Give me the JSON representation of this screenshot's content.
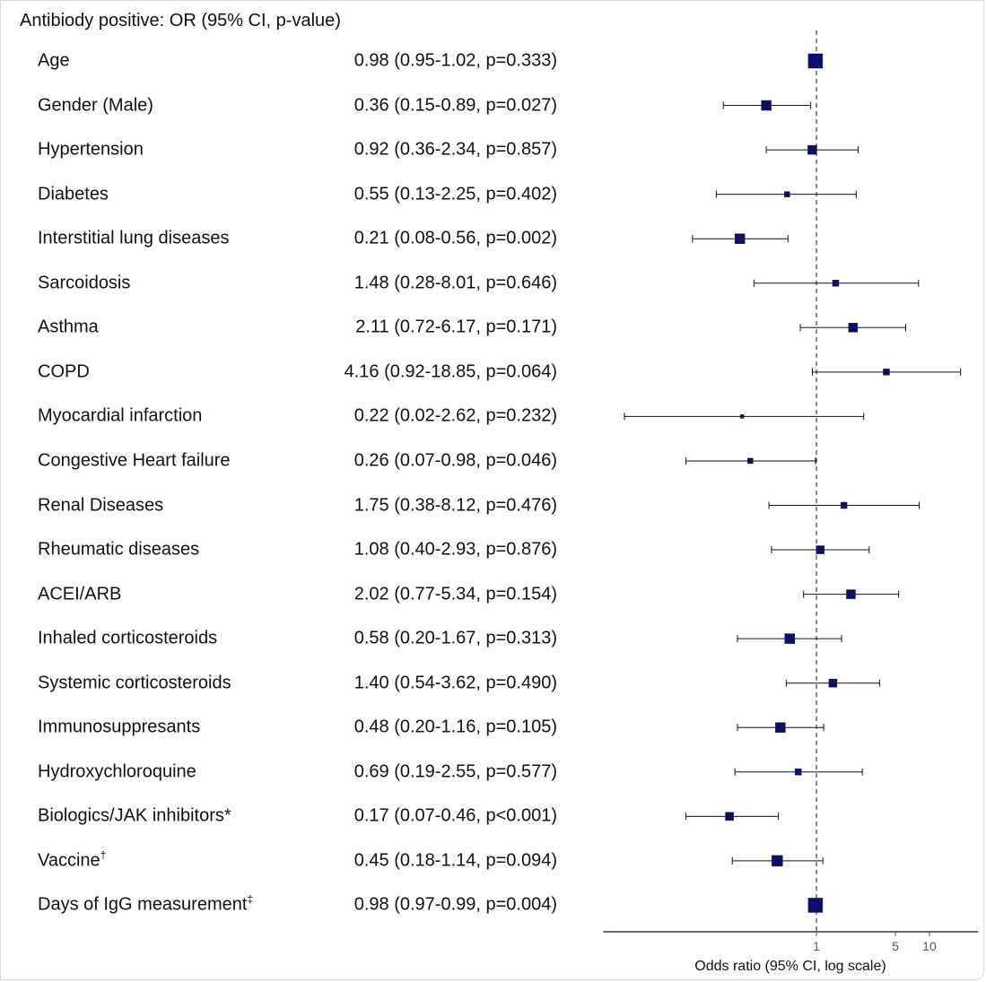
{
  "chart_data": {
    "type": "forest",
    "title": "Antibiody positive: OR (95% CI, p-value)",
    "xlabel": "Odds ratio (95% CI, log scale)",
    "x_scale": "log",
    "xlim": [
      0.013,
      27
    ],
    "xticks": [
      "1",
      "5",
      "10"
    ],
    "reference_line": 1,
    "marker_color": "#0d0d6b",
    "rows": [
      {
        "label": "Age",
        "sup": "",
        "or": 0.98,
        "lo": 0.95,
        "hi": 1.02,
        "text": "0.98 (0.95-1.02, p=0.333)",
        "weight": 16
      },
      {
        "label": "Gender (Male)",
        "sup": "",
        "or": 0.36,
        "lo": 0.15,
        "hi": 0.89,
        "text": "0.36 (0.15-0.89, p=0.027)",
        "weight": 11
      },
      {
        "label": "Hypertension",
        "sup": "",
        "or": 0.92,
        "lo": 0.36,
        "hi": 2.34,
        "text": "0.92 (0.36-2.34, p=0.857)",
        "weight": 10
      },
      {
        "label": "Diabetes",
        "sup": "",
        "or": 0.55,
        "lo": 0.13,
        "hi": 2.25,
        "text": "0.55 (0.13-2.25, p=0.402)",
        "weight": 6
      },
      {
        "label": "Interstitial lung diseases",
        "sup": "",
        "or": 0.21,
        "lo": 0.08,
        "hi": 0.56,
        "text": "0.21 (0.08-0.56, p=0.002)",
        "weight": 11
      },
      {
        "label": "Sarcoidosis",
        "sup": "",
        "or": 1.48,
        "lo": 0.28,
        "hi": 8.01,
        "text": "1.48 (0.28-8.01, p=0.646)",
        "weight": 7
      },
      {
        "label": "Asthma",
        "sup": "",
        "or": 2.11,
        "lo": 0.72,
        "hi": 6.17,
        "text": "2.11 (0.72-6.17, p=0.171)",
        "weight": 10
      },
      {
        "label": "COPD",
        "sup": "",
        "or": 4.16,
        "lo": 0.92,
        "hi": 18.85,
        "text": "4.16 (0.92-18.85, p=0.064)",
        "weight": 7
      },
      {
        "label": "Myocardial infarction",
        "sup": "",
        "or": 0.22,
        "lo": 0.02,
        "hi": 2.62,
        "text": "0.22 (0.02-2.62, p=0.232)",
        "weight": 4
      },
      {
        "label": "Congestive Heart failure",
        "sup": "",
        "or": 0.26,
        "lo": 0.07,
        "hi": 0.98,
        "text": "0.26 (0.07-0.98, p=0.046)",
        "weight": 6
      },
      {
        "label": "Renal Diseases",
        "sup": "",
        "or": 1.75,
        "lo": 0.38,
        "hi": 8.12,
        "text": "1.75 (0.38-8.12, p=0.476)",
        "weight": 7
      },
      {
        "label": "Rheumatic diseases",
        "sup": "",
        "or": 1.08,
        "lo": 0.4,
        "hi": 2.93,
        "text": "1.08 (0.40-2.93, p=0.876)",
        "weight": 9
      },
      {
        "label": "ACEI/ARB",
        "sup": "",
        "or": 2.02,
        "lo": 0.77,
        "hi": 5.34,
        "text": "2.02 (0.77-5.34, p=0.154)",
        "weight": 10
      },
      {
        "label": "Inhaled corticosteroids",
        "sup": "",
        "or": 0.58,
        "lo": 0.2,
        "hi": 1.67,
        "text": "0.58 (0.20-1.67, p=0.313)",
        "weight": 11
      },
      {
        "label": "Systemic corticosteroids",
        "sup": "",
        "or": 1.4,
        "lo": 0.54,
        "hi": 3.62,
        "text": "1.40 (0.54-3.62, p=0.490)",
        "weight": 9
      },
      {
        "label": "Immunosuppresants",
        "sup": "",
        "or": 0.48,
        "lo": 0.2,
        "hi": 1.16,
        "text": "0.48 (0.20-1.16, p=0.105)",
        "weight": 11
      },
      {
        "label": "Hydroxychloroquine",
        "sup": "",
        "or": 0.69,
        "lo": 0.19,
        "hi": 2.55,
        "text": "0.69 (0.19-2.55, p=0.577)",
        "weight": 7
      },
      {
        "label": "Biologics/JAK inhibitors*",
        "sup": "",
        "or": 0.17,
        "lo": 0.07,
        "hi": 0.46,
        "text": "0.17 (0.07-0.46, p<0.001)",
        "weight": 9
      },
      {
        "label": "Vaccine",
        "sup": "†",
        "or": 0.45,
        "lo": 0.18,
        "hi": 1.14,
        "text": "0.45 (0.18-1.14, p=0.094)",
        "weight": 12
      },
      {
        "label": "Days of IgG measurement",
        "sup": "‡",
        "or": 0.98,
        "lo": 0.97,
        "hi": 0.99,
        "text": "0.98 (0.97-0.99, p=0.004)",
        "weight": 16
      }
    ]
  }
}
